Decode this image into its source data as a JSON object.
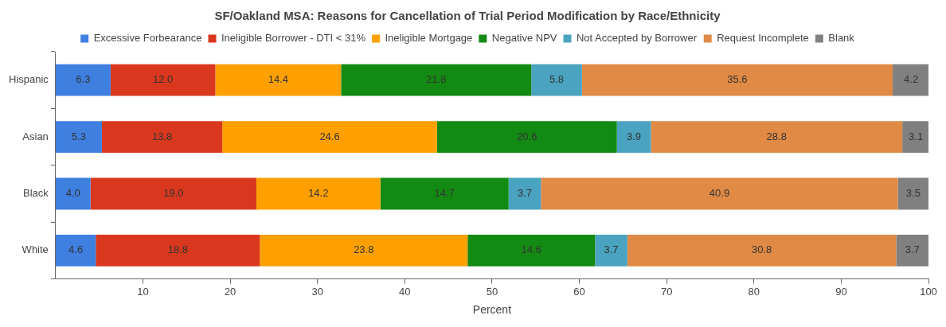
{
  "chart_data": {
    "type": "bar",
    "orientation": "horizontal",
    "stacked": true,
    "title": "SF/Oakland MSA: Reasons for Cancellation of Trial Period Modification by Race/Ethnicity",
    "xlabel": "Percent",
    "categories": [
      "Hispanic",
      "Asian",
      "Black",
      "White"
    ],
    "series": [
      {
        "name": "Excessive Forbearance",
        "color": "#3f7fe0",
        "values": [
          6.3,
          5.3,
          4.0,
          4.6
        ],
        "value_labels": [
          "6.3",
          "5.3",
          "4.0",
          "4.6"
        ]
      },
      {
        "name": "Ineligible Borrower - DTI < 31%",
        "color": "#d9381e",
        "values": [
          12.0,
          13.8,
          19.0,
          18.8
        ],
        "value_labels": [
          "12.0",
          "13.8",
          "19.0",
          "18.8"
        ]
      },
      {
        "name": "Ineligible Mortgage",
        "color": "#ffa000",
        "values": [
          14.4,
          24.6,
          14.2,
          23.8
        ],
        "value_labels": [
          "14.4",
          "24.6",
          "14.2",
          "23.8"
        ]
      },
      {
        "name": "Negative NPV",
        "color": "#138a13",
        "values": [
          21.8,
          20.6,
          14.7,
          14.6
        ],
        "value_labels": [
          "21.8",
          "20.6",
          "14.7",
          "14.6"
        ]
      },
      {
        "name": "Not Accepted by Borrower",
        "color": "#4aa3c0",
        "values": [
          5.8,
          3.9,
          3.7,
          3.7
        ],
        "value_labels": [
          "5.8",
          "3.9",
          "3.7",
          "3.7"
        ]
      },
      {
        "name": "Request Incomplete",
        "color": "#e08a45",
        "values": [
          35.6,
          28.8,
          40.9,
          30.8
        ],
        "value_labels": [
          "35.6",
          "28.8",
          "40.9",
          "30.8"
        ]
      },
      {
        "name": "Blank",
        "color": "#808080",
        "values": [
          4.2,
          3.1,
          3.5,
          3.7
        ],
        "value_labels": [
          "4.2",
          "3.1",
          "3.5",
          "3.7"
        ]
      }
    ],
    "xlim": [
      0,
      100
    ],
    "xticks": [
      10,
      20,
      30,
      40,
      50,
      60,
      70,
      80,
      90,
      100
    ],
    "legend": "top",
    "grid": false
  }
}
